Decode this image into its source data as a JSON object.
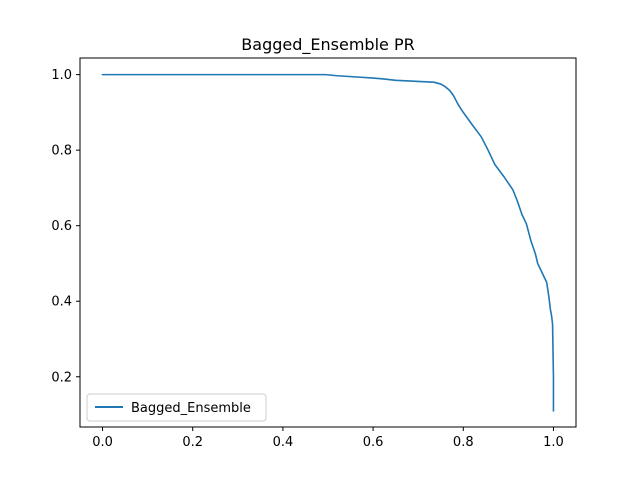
{
  "chart_data": {
    "type": "line",
    "title": "Bagged_Ensemble PR",
    "xlabel": "",
    "ylabel": "",
    "xlim": [
      -0.05,
      1.05
    ],
    "ylim": [
      0.067,
      1.044
    ],
    "x_ticks": [
      0.0,
      0.2,
      0.4,
      0.6,
      0.8,
      1.0
    ],
    "x_tick_labels": [
      "0.0",
      "0.2",
      "0.4",
      "0.6",
      "0.8",
      "1.0"
    ],
    "y_ticks": [
      0.2,
      0.4,
      0.6,
      0.8,
      1.0
    ],
    "y_tick_labels": [
      "0.2",
      "0.4",
      "0.6",
      "0.8",
      "1.0"
    ],
    "grid": false,
    "legend_position": "lower-left",
    "series": [
      {
        "name": "Bagged_Ensemble",
        "color": "#1f77b4",
        "x": [
          0.0,
          0.05,
          0.1,
          0.2,
          0.3,
          0.4,
          0.45,
          0.495,
          0.52,
          0.56,
          0.6,
          0.62,
          0.65,
          0.7,
          0.735,
          0.75,
          0.76,
          0.77,
          0.778,
          0.79,
          0.8,
          0.82,
          0.84,
          0.855,
          0.87,
          0.89,
          0.91,
          0.92,
          0.93,
          0.94,
          0.95,
          0.96,
          0.965,
          0.975,
          0.985,
          0.99,
          0.993,
          0.996,
          0.998,
          1.0,
          1.0
        ],
        "y": [
          1.0,
          1.0,
          1.0,
          1.0,
          1.0,
          1.0,
          1.0,
          1.0,
          0.997,
          0.994,
          0.991,
          0.989,
          0.985,
          0.982,
          0.98,
          0.975,
          0.968,
          0.958,
          0.945,
          0.918,
          0.9,
          0.867,
          0.835,
          0.8,
          0.762,
          0.73,
          0.695,
          0.665,
          0.63,
          0.605,
          0.56,
          0.525,
          0.5,
          0.475,
          0.45,
          0.41,
          0.38,
          0.36,
          0.34,
          0.2,
          0.11
        ]
      }
    ]
  }
}
